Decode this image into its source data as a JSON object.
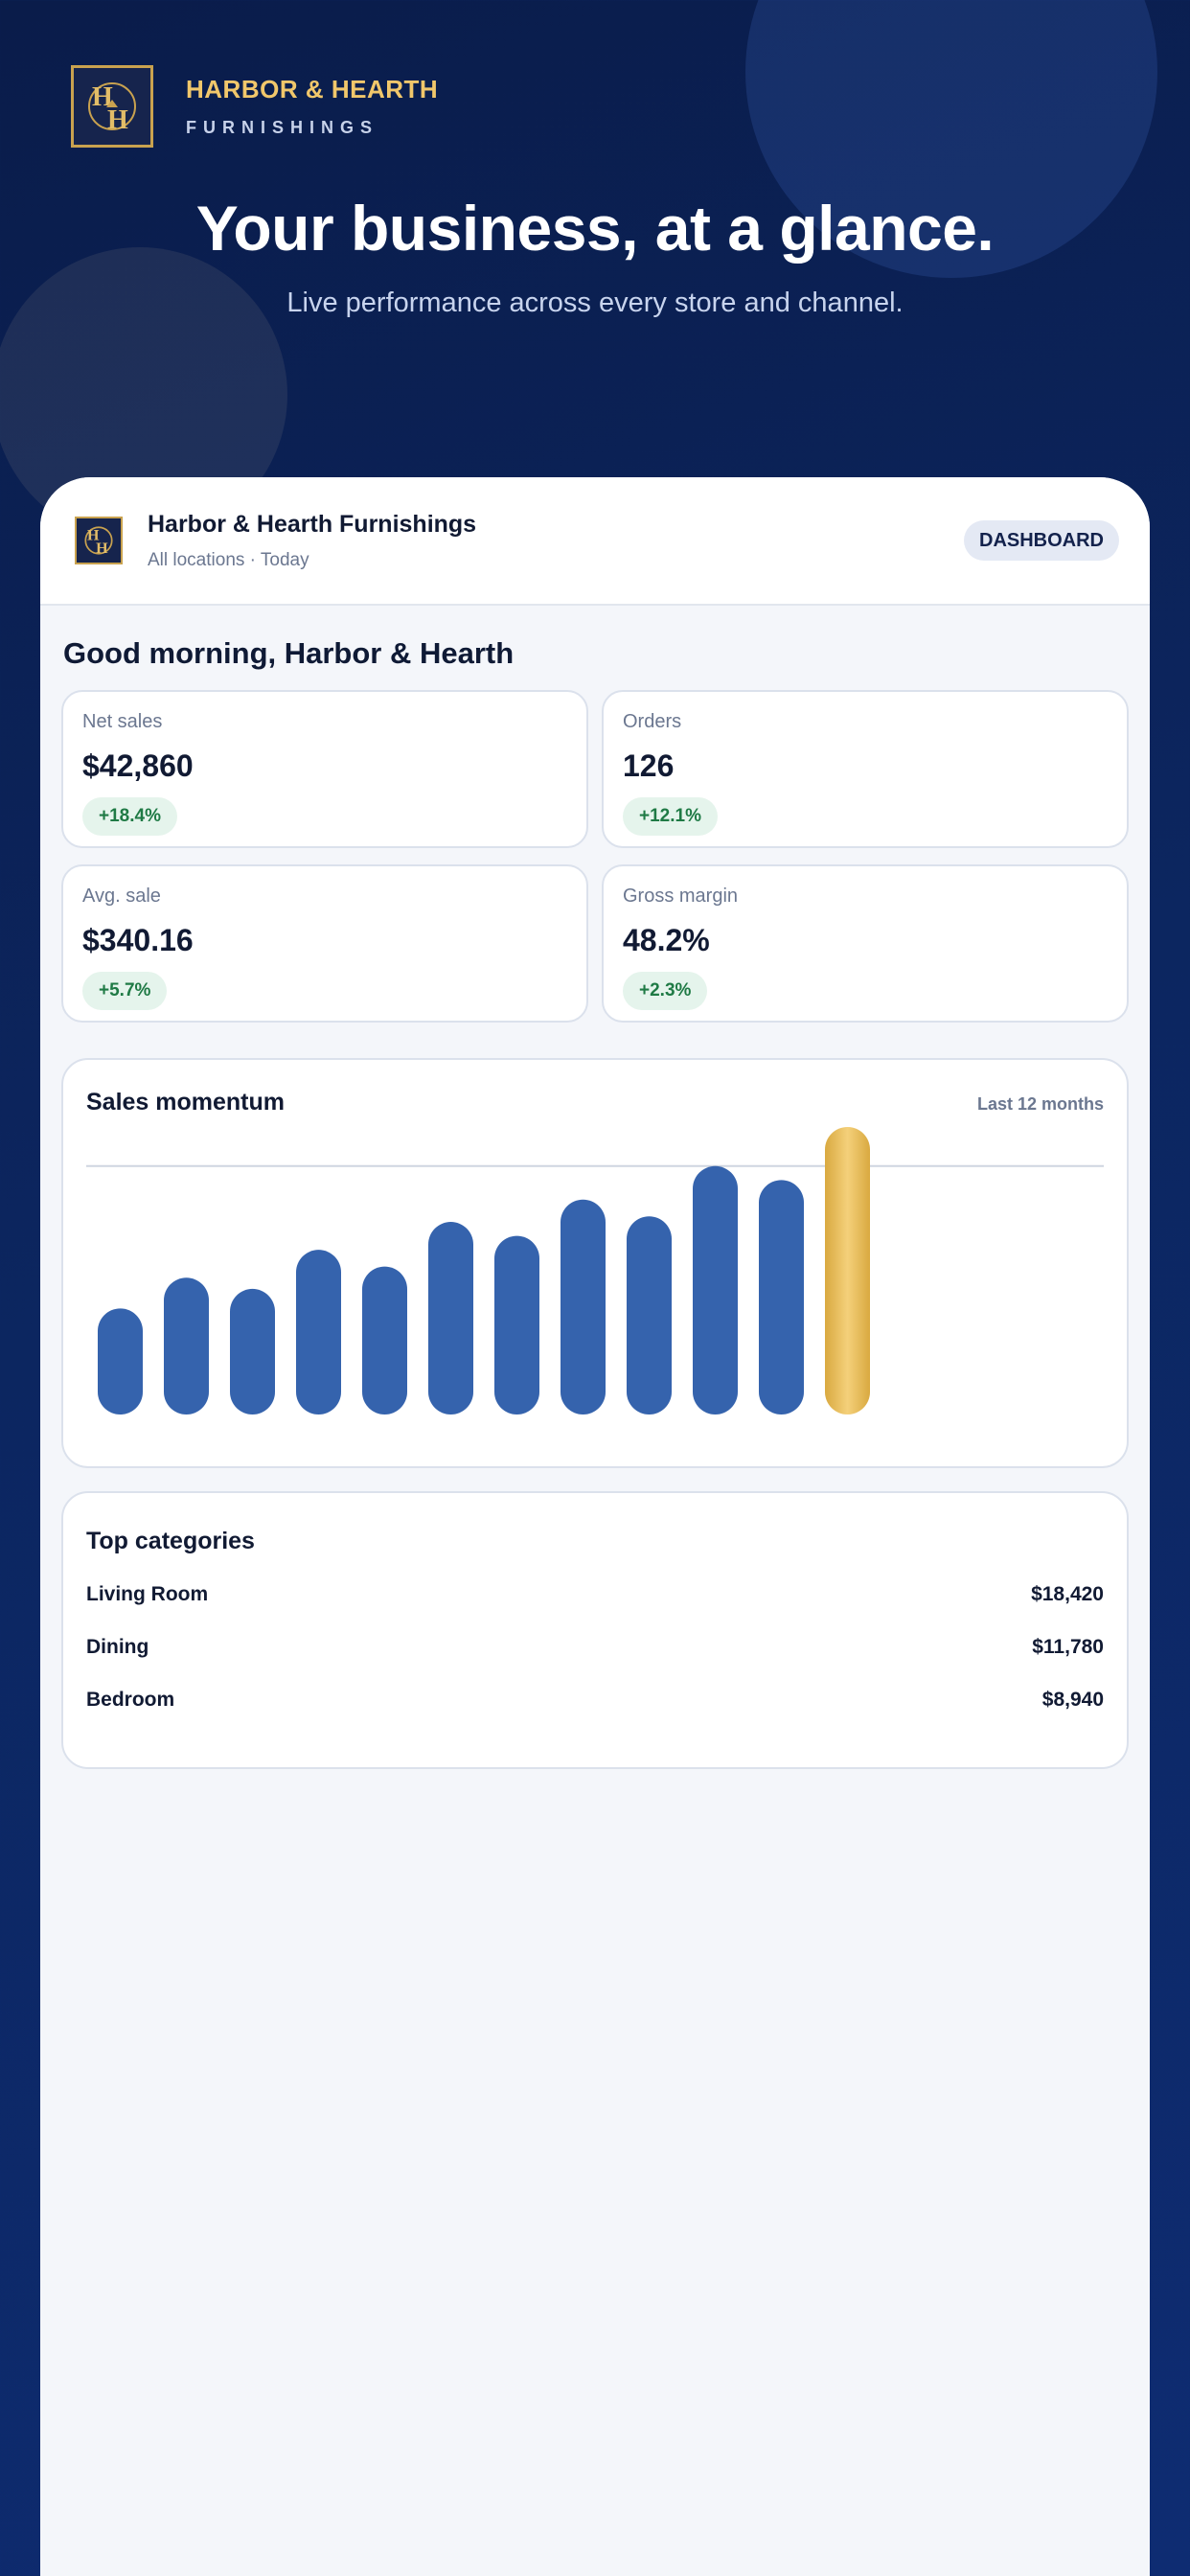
{
  "brand": {
    "name": "HARBOR & HEARTH",
    "subtitle": "FURNISHINGS",
    "logo_icon": "hh-monogram-logo"
  },
  "hero": {
    "title": "Your business, at a glance.",
    "subtitle": "Live performance across every store and channel."
  },
  "app": {
    "title": "Harbor & Hearth Furnishings",
    "subtitle": "All locations · Today",
    "badge": "DASHBOARD",
    "greeting": "Good morning, Harbor & Hearth"
  },
  "kpis": [
    {
      "label": "Net sales",
      "value": "$42,860",
      "delta": "+18.4%"
    },
    {
      "label": "Orders",
      "value": "126",
      "delta": "+12.1%"
    },
    {
      "label": "Avg. sale",
      "value": "$340.16",
      "delta": "+5.7%"
    },
    {
      "label": "Gross margin",
      "value": "48.2%",
      "delta": "+2.3%"
    }
  ],
  "momentum": {
    "title": "Sales momentum",
    "period": "Last 12 months"
  },
  "chart_data": {
    "type": "bar",
    "title": "Sales momentum",
    "categories": [
      "",
      "",
      "",
      "",
      "",
      "",
      "",
      "",
      "",
      "",
      "",
      ""
    ],
    "values": [
      38,
      49,
      45,
      59,
      53,
      69,
      64,
      77,
      71,
      89,
      84,
      103
    ],
    "ylim": [
      0,
      103
    ],
    "gridline_at": 89,
    "highlight_index": 11,
    "colors": {
      "bar": "#3563ad",
      "highlight": "#e8bd5d"
    }
  },
  "categories": {
    "title": "Top categories",
    "items": [
      {
        "name": "Living Room",
        "value": "$18,420"
      },
      {
        "name": "Dining",
        "value": "$11,780"
      },
      {
        "name": "Bedroom",
        "value": "$8,940"
      }
    ]
  },
  "colors": {
    "navy": "#0c2660",
    "gold": "#f1c76b",
    "positive": "#1f7a45"
  }
}
